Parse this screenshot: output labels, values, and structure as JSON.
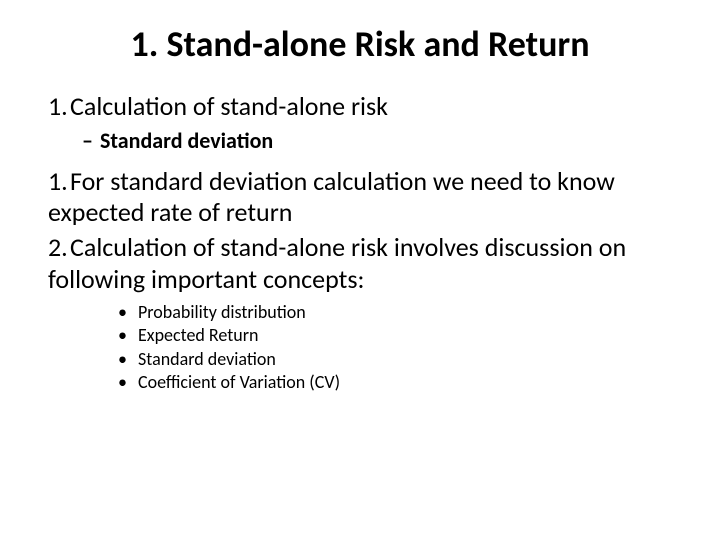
{
  "title": "1. Stand-alone Risk and Return",
  "item1": {
    "num": "1.",
    "text": "Calculation of stand-alone risk"
  },
  "sub1": {
    "dash": "–",
    "text": "Standard deviation"
  },
  "item2": {
    "num": "1.",
    "text": "For standard deviation calculation we need to know expected rate of return"
  },
  "item3": {
    "num": "2.",
    "text": "Calculation of stand-alone risk involves discussion on following important concepts:"
  },
  "bullets": {
    "b0": "Probability distribution",
    "b1": "Expected Return",
    "b2": "Standard deviation",
    "b3": "Coefficient of Variation (CV)"
  },
  "dot": "•"
}
